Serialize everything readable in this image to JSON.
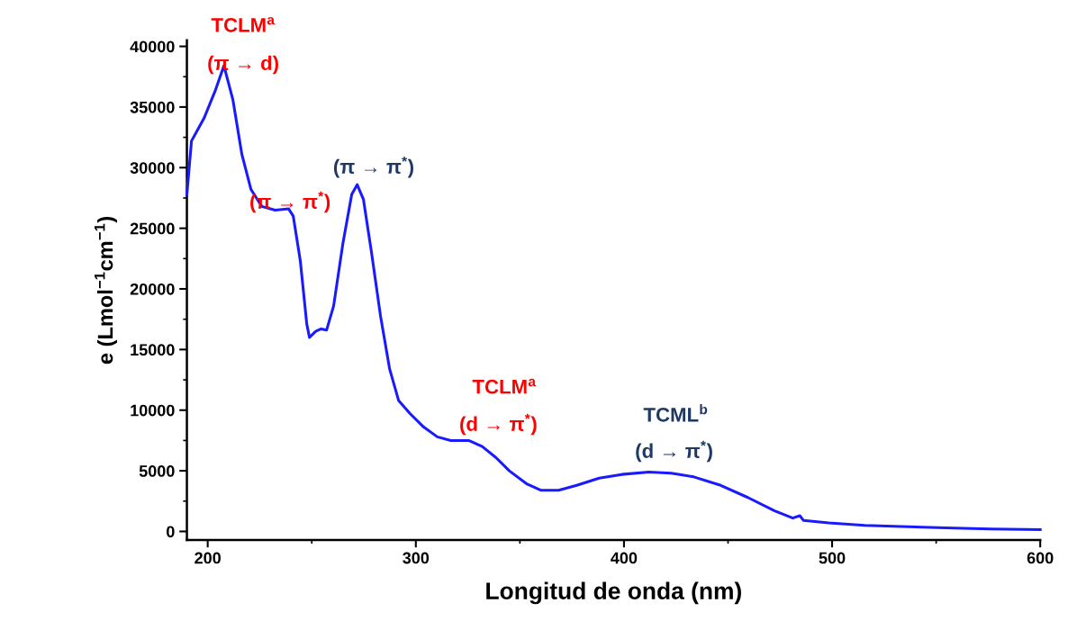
{
  "chart_data": {
    "type": "line",
    "xlabel": "Longitud de onda (nm)",
    "ylabel": "e (Lmol$^{−1}$cm$^{−1}$)",
    "xlim": [
      190,
      600
    ],
    "ylim": [
      -700,
      40500
    ],
    "xticks": [
      200,
      300,
      400,
      500,
      600
    ],
    "yticks": [
      0,
      5000,
      10000,
      15000,
      20000,
      25000,
      30000,
      35000,
      40000
    ],
    "grid": false,
    "legend": false,
    "marker": "none",
    "line_style": "solid",
    "series": [
      {
        "color": "#1a1aff",
        "x": [
          190,
          192.2,
          194.8,
          198.3,
          203.5,
          207.8,
          212.1,
          216.4,
          220.8,
          226,
          232.4,
          238.9,
          241.1,
          244.5,
          247.6,
          248.9,
          251.9,
          254.5,
          257.1,
          260.5,
          264.9,
          269.2,
          271.8,
          274.8,
          278.7,
          283,
          287.4,
          291.7,
          297.3,
          303.8,
          310.3,
          316.8,
          325.4,
          331.9,
          338.4,
          344.9,
          353.5,
          360,
          368.6,
          377.3,
          388.1,
          398.9,
          411.9,
          422.7,
          433.5,
          446.5,
          459.5,
          472.4,
          481.1,
          484.5,
          486.3,
          498.4,
          515.7,
          533,
          554.6,
          576.2,
          600
        ],
        "values": [
          27800,
          32200,
          33000,
          34100,
          36300,
          38400,
          35600,
          31100,
          28200,
          26800,
          26500,
          26600,
          26000,
          22300,
          17100,
          16000,
          16500,
          16700,
          16600,
          18600,
          23700,
          27800,
          28600,
          27400,
          23000,
          17800,
          13400,
          10800,
          9700,
          8600,
          7800,
          7500,
          7500,
          7000,
          6100,
          5000,
          3900,
          3400,
          3400,
          3800,
          4400,
          4700,
          4900,
          4800,
          4500,
          3800,
          2800,
          1700,
          1100,
          1300,
          900,
          700,
          500,
          400,
          300,
          200,
          150
        ]
      }
    ],
    "annotations": [
      "TCLM$^{a}$",
      "(π → d)",
      "(π → π$^{*}$)",
      "(π → π$^{*}$)",
      "TCLM$^{a}$",
      "(d → π$^{*}$)",
      "TCML$^{b}$",
      "(d → π$^{*}$)"
    ]
  }
}
